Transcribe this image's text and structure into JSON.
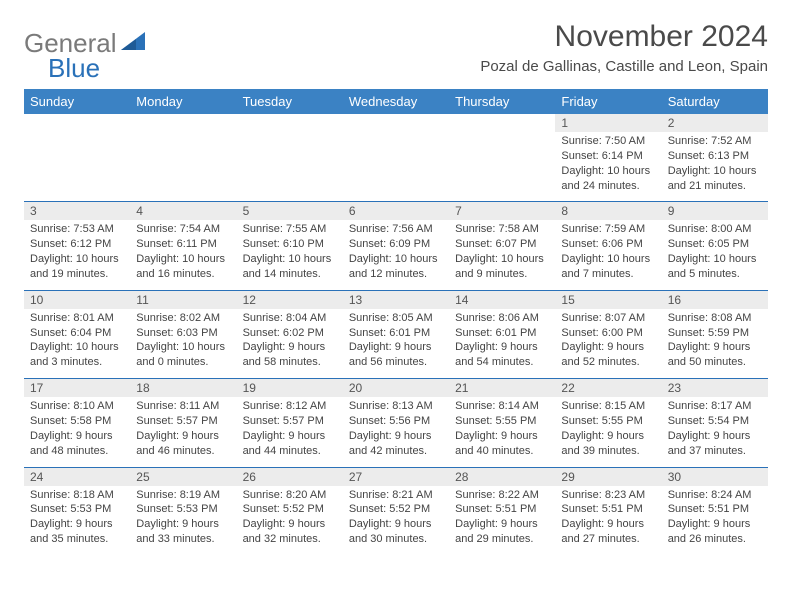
{
  "brand": {
    "word1": "General",
    "word2": "Blue"
  },
  "colors": {
    "header_bg": "#3b82c4",
    "accent": "#2a71b8",
    "daynum_bg": "#ececec",
    "text": "#444444",
    "title": "#4a4a4a"
  },
  "title": "November 2024",
  "location": "Pozal de Gallinas, Castille and Leon, Spain",
  "weekdays": [
    "Sunday",
    "Monday",
    "Tuesday",
    "Wednesday",
    "Thursday",
    "Friday",
    "Saturday"
  ],
  "weeks": [
    [
      {
        "n": "",
        "sr": "",
        "ss": "",
        "d1": "",
        "d2": ""
      },
      {
        "n": "",
        "sr": "",
        "ss": "",
        "d1": "",
        "d2": ""
      },
      {
        "n": "",
        "sr": "",
        "ss": "",
        "d1": "",
        "d2": ""
      },
      {
        "n": "",
        "sr": "",
        "ss": "",
        "d1": "",
        "d2": ""
      },
      {
        "n": "",
        "sr": "",
        "ss": "",
        "d1": "",
        "d2": ""
      },
      {
        "n": "1",
        "sr": "Sunrise: 7:50 AM",
        "ss": "Sunset: 6:14 PM",
        "d1": "Daylight: 10 hours",
        "d2": "and 24 minutes."
      },
      {
        "n": "2",
        "sr": "Sunrise: 7:52 AM",
        "ss": "Sunset: 6:13 PM",
        "d1": "Daylight: 10 hours",
        "d2": "and 21 minutes."
      }
    ],
    [
      {
        "n": "3",
        "sr": "Sunrise: 7:53 AM",
        "ss": "Sunset: 6:12 PM",
        "d1": "Daylight: 10 hours",
        "d2": "and 19 minutes."
      },
      {
        "n": "4",
        "sr": "Sunrise: 7:54 AM",
        "ss": "Sunset: 6:11 PM",
        "d1": "Daylight: 10 hours",
        "d2": "and 16 minutes."
      },
      {
        "n": "5",
        "sr": "Sunrise: 7:55 AM",
        "ss": "Sunset: 6:10 PM",
        "d1": "Daylight: 10 hours",
        "d2": "and 14 minutes."
      },
      {
        "n": "6",
        "sr": "Sunrise: 7:56 AM",
        "ss": "Sunset: 6:09 PM",
        "d1": "Daylight: 10 hours",
        "d2": "and 12 minutes."
      },
      {
        "n": "7",
        "sr": "Sunrise: 7:58 AM",
        "ss": "Sunset: 6:07 PM",
        "d1": "Daylight: 10 hours",
        "d2": "and 9 minutes."
      },
      {
        "n": "8",
        "sr": "Sunrise: 7:59 AM",
        "ss": "Sunset: 6:06 PM",
        "d1": "Daylight: 10 hours",
        "d2": "and 7 minutes."
      },
      {
        "n": "9",
        "sr": "Sunrise: 8:00 AM",
        "ss": "Sunset: 6:05 PM",
        "d1": "Daylight: 10 hours",
        "d2": "and 5 minutes."
      }
    ],
    [
      {
        "n": "10",
        "sr": "Sunrise: 8:01 AM",
        "ss": "Sunset: 6:04 PM",
        "d1": "Daylight: 10 hours",
        "d2": "and 3 minutes."
      },
      {
        "n": "11",
        "sr": "Sunrise: 8:02 AM",
        "ss": "Sunset: 6:03 PM",
        "d1": "Daylight: 10 hours",
        "d2": "and 0 minutes."
      },
      {
        "n": "12",
        "sr": "Sunrise: 8:04 AM",
        "ss": "Sunset: 6:02 PM",
        "d1": "Daylight: 9 hours",
        "d2": "and 58 minutes."
      },
      {
        "n": "13",
        "sr": "Sunrise: 8:05 AM",
        "ss": "Sunset: 6:01 PM",
        "d1": "Daylight: 9 hours",
        "d2": "and 56 minutes."
      },
      {
        "n": "14",
        "sr": "Sunrise: 8:06 AM",
        "ss": "Sunset: 6:01 PM",
        "d1": "Daylight: 9 hours",
        "d2": "and 54 minutes."
      },
      {
        "n": "15",
        "sr": "Sunrise: 8:07 AM",
        "ss": "Sunset: 6:00 PM",
        "d1": "Daylight: 9 hours",
        "d2": "and 52 minutes."
      },
      {
        "n": "16",
        "sr": "Sunrise: 8:08 AM",
        "ss": "Sunset: 5:59 PM",
        "d1": "Daylight: 9 hours",
        "d2": "and 50 minutes."
      }
    ],
    [
      {
        "n": "17",
        "sr": "Sunrise: 8:10 AM",
        "ss": "Sunset: 5:58 PM",
        "d1": "Daylight: 9 hours",
        "d2": "and 48 minutes."
      },
      {
        "n": "18",
        "sr": "Sunrise: 8:11 AM",
        "ss": "Sunset: 5:57 PM",
        "d1": "Daylight: 9 hours",
        "d2": "and 46 minutes."
      },
      {
        "n": "19",
        "sr": "Sunrise: 8:12 AM",
        "ss": "Sunset: 5:57 PM",
        "d1": "Daylight: 9 hours",
        "d2": "and 44 minutes."
      },
      {
        "n": "20",
        "sr": "Sunrise: 8:13 AM",
        "ss": "Sunset: 5:56 PM",
        "d1": "Daylight: 9 hours",
        "d2": "and 42 minutes."
      },
      {
        "n": "21",
        "sr": "Sunrise: 8:14 AM",
        "ss": "Sunset: 5:55 PM",
        "d1": "Daylight: 9 hours",
        "d2": "and 40 minutes."
      },
      {
        "n": "22",
        "sr": "Sunrise: 8:15 AM",
        "ss": "Sunset: 5:55 PM",
        "d1": "Daylight: 9 hours",
        "d2": "and 39 minutes."
      },
      {
        "n": "23",
        "sr": "Sunrise: 8:17 AM",
        "ss": "Sunset: 5:54 PM",
        "d1": "Daylight: 9 hours",
        "d2": "and 37 minutes."
      }
    ],
    [
      {
        "n": "24",
        "sr": "Sunrise: 8:18 AM",
        "ss": "Sunset: 5:53 PM",
        "d1": "Daylight: 9 hours",
        "d2": "and 35 minutes."
      },
      {
        "n": "25",
        "sr": "Sunrise: 8:19 AM",
        "ss": "Sunset: 5:53 PM",
        "d1": "Daylight: 9 hours",
        "d2": "and 33 minutes."
      },
      {
        "n": "26",
        "sr": "Sunrise: 8:20 AM",
        "ss": "Sunset: 5:52 PM",
        "d1": "Daylight: 9 hours",
        "d2": "and 32 minutes."
      },
      {
        "n": "27",
        "sr": "Sunrise: 8:21 AM",
        "ss": "Sunset: 5:52 PM",
        "d1": "Daylight: 9 hours",
        "d2": "and 30 minutes."
      },
      {
        "n": "28",
        "sr": "Sunrise: 8:22 AM",
        "ss": "Sunset: 5:51 PM",
        "d1": "Daylight: 9 hours",
        "d2": "and 29 minutes."
      },
      {
        "n": "29",
        "sr": "Sunrise: 8:23 AM",
        "ss": "Sunset: 5:51 PM",
        "d1": "Daylight: 9 hours",
        "d2": "and 27 minutes."
      },
      {
        "n": "30",
        "sr": "Sunrise: 8:24 AM",
        "ss": "Sunset: 5:51 PM",
        "d1": "Daylight: 9 hours",
        "d2": "and 26 minutes."
      }
    ]
  ]
}
